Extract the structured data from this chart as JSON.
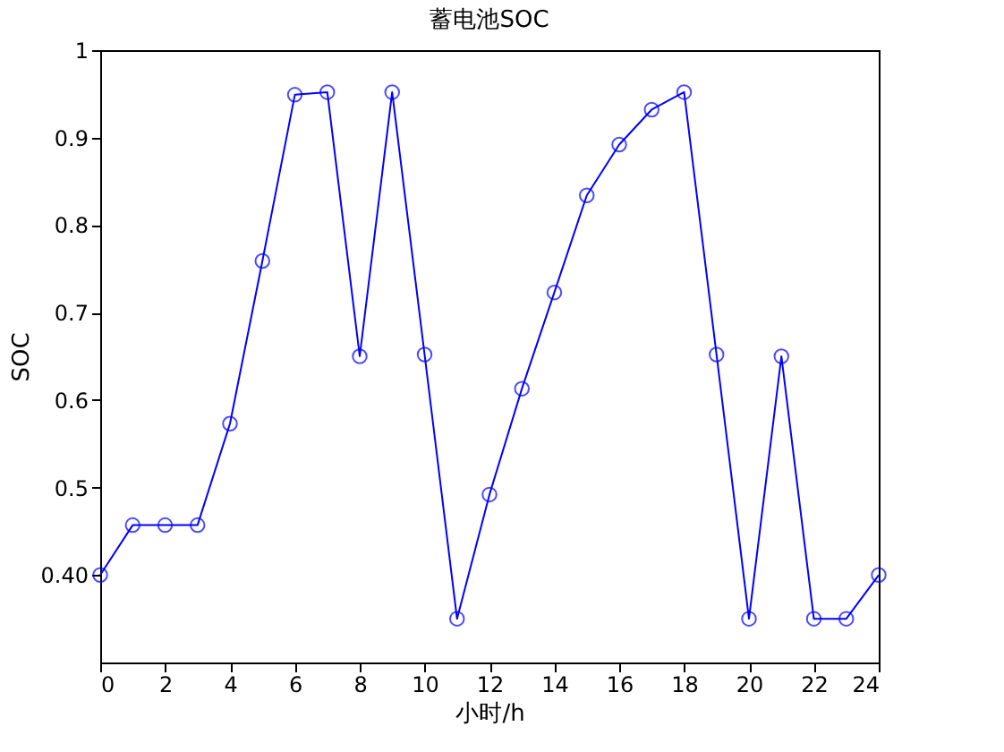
{
  "chart_data": {
    "type": "line",
    "title": "蓄电池SOC",
    "xlabel": "小时/h",
    "ylabel": "SOC",
    "x": [
      0,
      1,
      2,
      3,
      4,
      5,
      6,
      7,
      8,
      9,
      10,
      11,
      12,
      13,
      14,
      15,
      16,
      17,
      18,
      19,
      20,
      21,
      22,
      23,
      24
    ],
    "series": [
      {
        "color": "#0000ff",
        "values": [
          0.4,
          0.457,
          0.457,
          0.457,
          0.573,
          0.759,
          0.949,
          0.952,
          0.65,
          0.952,
          0.652,
          0.35,
          0.492,
          0.613,
          0.723,
          0.834,
          0.892,
          0.932,
          0.952,
          0.652,
          0.35,
          0.65,
          0.35,
          0.35,
          0.4
        ]
      }
    ],
    "xlim": [
      0,
      24
    ],
    "xticks": [
      0,
      2,
      4,
      6,
      8,
      10,
      12,
      14,
      16,
      18,
      20,
      22,
      24
    ],
    "ylim": [
      0.3,
      1
    ],
    "yticks": [
      {
        "value": 0.4,
        "label": "0.40"
      },
      0.5,
      0.6,
      0.7,
      0.8,
      0.9,
      1
    ],
    "grid": false,
    "marker": "circle",
    "line_style": "solid"
  }
}
